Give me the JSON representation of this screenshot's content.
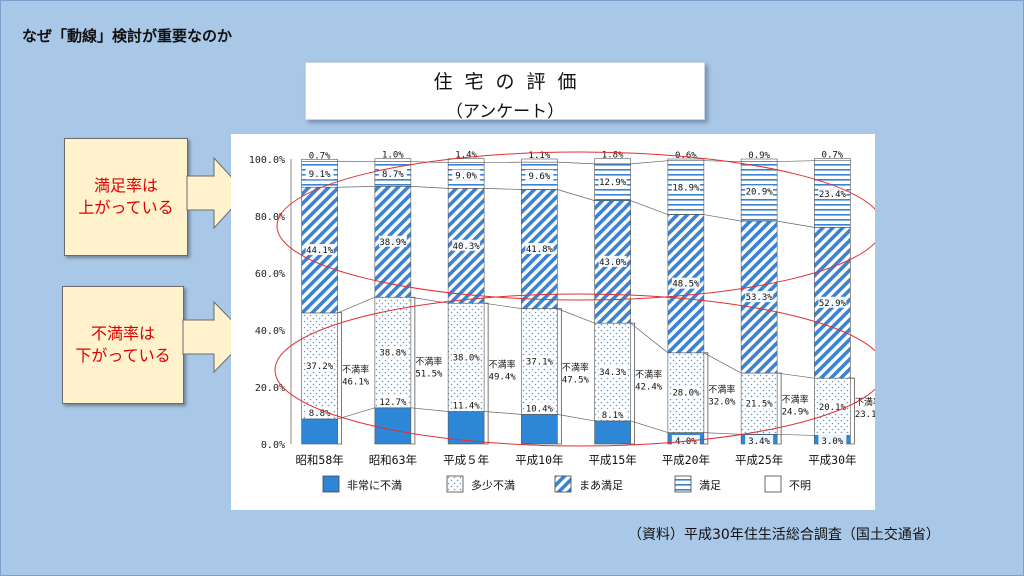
{
  "heading": "なぜ「動線」検討が重要なのか",
  "title": {
    "main": "住宅の評価",
    "sub": "（アンケート）"
  },
  "callouts": {
    "satisfaction": {
      "line1": "満足率は",
      "line2": "上がっている"
    },
    "dissatisfaction": {
      "line1": "不満率は",
      "line2": "下がっている"
    }
  },
  "source_note": "（資料）平成30年住生活総合調査（国土交通省）",
  "colors": {
    "background": "#a9c7e6",
    "callout_fill": "#fff2cc",
    "callout_text": "#e00000",
    "ellipse": "#e03030",
    "very_dissatisfied": "#2e86d6",
    "hatch": "#3b82d0"
  },
  "chart_data": {
    "type": "bar",
    "stacked": true,
    "categories": [
      "昭和58年",
      "昭和63年",
      "平成５年",
      "平成10年",
      "平成15年",
      "平成20年",
      "平成25年",
      "平成30年"
    ],
    "series": [
      {
        "name": "非常に不満",
        "pattern": "solid",
        "values": [
          8.8,
          12.7,
          11.4,
          10.4,
          8.1,
          4.0,
          3.4,
          3.0
        ]
      },
      {
        "name": "多少不満",
        "pattern": "dots",
        "values": [
          37.2,
          38.8,
          38.0,
          37.1,
          34.3,
          28.0,
          21.5,
          20.1
        ]
      },
      {
        "name": "まあ満足",
        "pattern": "diagonal",
        "values": [
          44.1,
          38.9,
          40.3,
          41.8,
          43.0,
          48.5,
          53.3,
          52.9
        ]
      },
      {
        "name": "満足",
        "pattern": "horizontal",
        "values": [
          9.1,
          8.7,
          9.0,
          9.6,
          12.9,
          18.9,
          20.9,
          23.4
        ]
      },
      {
        "name": "不明",
        "pattern": "blank",
        "values": [
          0.7,
          1.0,
          1.4,
          1.1,
          1.8,
          0.6,
          0.9,
          0.7
        ]
      }
    ],
    "dissatisfaction_label": "不満率",
    "dissatisfaction_rates": [
      46.1,
      51.5,
      49.4,
      47.5,
      42.4,
      32.0,
      24.9,
      23.1
    ],
    "y_ticks": [
      "0.0%",
      "20.0%",
      "40.0%",
      "60.0%",
      "80.0%",
      "100.0%"
    ],
    "ylim": [
      0,
      100
    ],
    "legend_position": "bottom"
  }
}
